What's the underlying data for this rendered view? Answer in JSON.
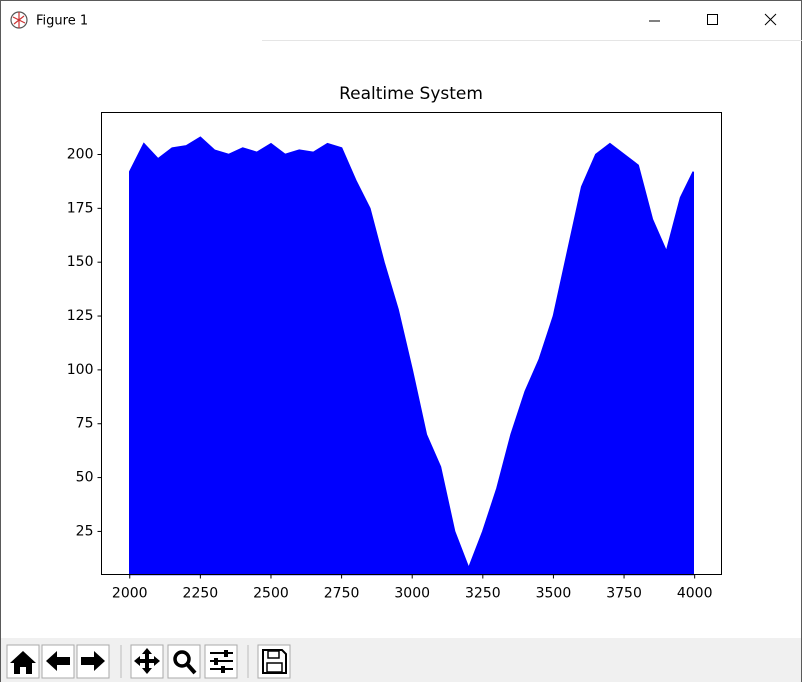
{
  "window": {
    "title": "Figure 1"
  },
  "chart_data": {
    "type": "area",
    "title": "Realtime System",
    "color": "#0000ff",
    "x": [
      2000,
      2050,
      2100,
      2150,
      2200,
      2250,
      2300,
      2350,
      2400,
      2450,
      2500,
      2550,
      2600,
      2650,
      2700,
      2750,
      2800,
      2850,
      2900,
      2950,
      3000,
      3050,
      3100,
      3150,
      3200,
      3250,
      3300,
      3350,
      3400,
      3450,
      3500,
      3550,
      3600,
      3650,
      3700,
      3750,
      3800,
      3850,
      3900,
      3950,
      3995
    ],
    "values": [
      192,
      205,
      198,
      203,
      204,
      208,
      202,
      200,
      203,
      201,
      205,
      200,
      202,
      201,
      205,
      203,
      188,
      175,
      150,
      128,
      100,
      70,
      55,
      25,
      8,
      25,
      45,
      70,
      90,
      105,
      125,
      155,
      185,
      200,
      205,
      200,
      195,
      170,
      155,
      180,
      192
    ],
    "xlim": [
      1900,
      4095
    ],
    "ylim": [
      5,
      219.5
    ],
    "xticks": [
      2000,
      2250,
      2500,
      2750,
      3000,
      3250,
      3500,
      3750,
      4000
    ],
    "yticks": [
      25,
      50,
      75,
      100,
      125,
      150,
      175,
      200
    ]
  }
}
